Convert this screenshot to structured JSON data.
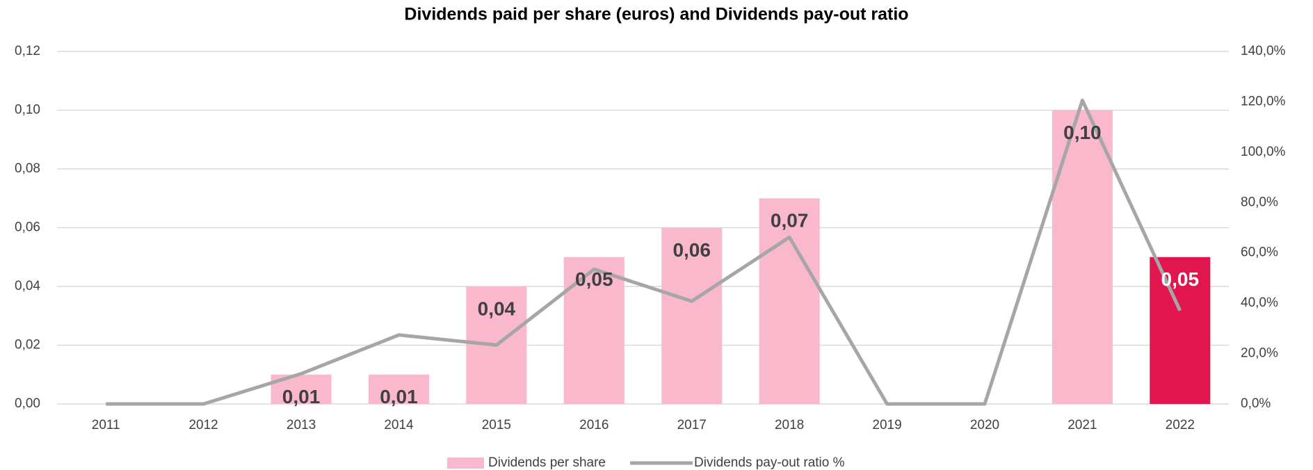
{
  "chart_data": {
    "type": "bar_line",
    "title": "Dividends paid per share (euros) and Dividends pay-out ratio",
    "categories": [
      "2011",
      "2012",
      "2013",
      "2014",
      "2015",
      "2016",
      "2017",
      "2018",
      "2019",
      "2020",
      "2021",
      "2022"
    ],
    "series": [
      {
        "name": "Dividends per share",
        "type": "bar",
        "color": "#f9b8cb",
        "colors": [
          "#f9b8cb",
          "#f9b8cb",
          "#f9b8cb",
          "#f9b8cb",
          "#f9b8cb",
          "#f9b8cb",
          "#f9b8cb",
          "#f9b8cb",
          "#f9b8cb",
          "#f9b8cb",
          "#f9b8cb",
          "#e2164f"
        ],
        "values": [
          0,
          0,
          0.01,
          0.01,
          0.04,
          0.05,
          0.06,
          0.07,
          0,
          0,
          0.1,
          0.05
        ],
        "value_labels": [
          null,
          null,
          "0,01",
          "0,01",
          "0,04",
          "0,05",
          "0,06",
          "0,07",
          null,
          null,
          "0,10",
          "0,05"
        ],
        "value_label_colors": [
          "#404040",
          "#404040",
          "#404040",
          "#404040",
          "#404040",
          "#404040",
          "#404040",
          "#404040",
          "#404040",
          "#404040",
          "#404040",
          "#ffffff"
        ]
      },
      {
        "name": "Dividends pay-out ratio %",
        "type": "line",
        "axis": "y2",
        "color": "#a6a6a6",
        "values": [
          0,
          0,
          12,
          27.4,
          23.4,
          53.5,
          40.8,
          66.2,
          0,
          0,
          120.6,
          37.1
        ]
      }
    ],
    "ylim": [
      0,
      0.12
    ],
    "yticks": [
      {
        "value": 0,
        "label": "0,00"
      },
      {
        "value": 0.02,
        "label": "0,02"
      },
      {
        "value": 0.04,
        "label": "0,04"
      },
      {
        "value": 0.06,
        "label": "0,06"
      },
      {
        "value": 0.08,
        "label": "0,08"
      },
      {
        "value": 0.1,
        "label": "0,10"
      },
      {
        "value": 0.12,
        "label": "0,12"
      }
    ],
    "y2lim": [
      0,
      140
    ],
    "y2ticks": [
      {
        "value": 0,
        "label": "0,0%"
      },
      {
        "value": 20,
        "label": "20,0%"
      },
      {
        "value": 40,
        "label": "40,0%"
      },
      {
        "value": 60,
        "label": "60,0%"
      },
      {
        "value": 80,
        "label": "80,0%"
      },
      {
        "value": 100,
        "label": "100,0%"
      },
      {
        "value": 120,
        "label": "120,0%"
      },
      {
        "value": 140,
        "label": "140,0%"
      }
    ],
    "grid": true,
    "legend": "bottom"
  }
}
